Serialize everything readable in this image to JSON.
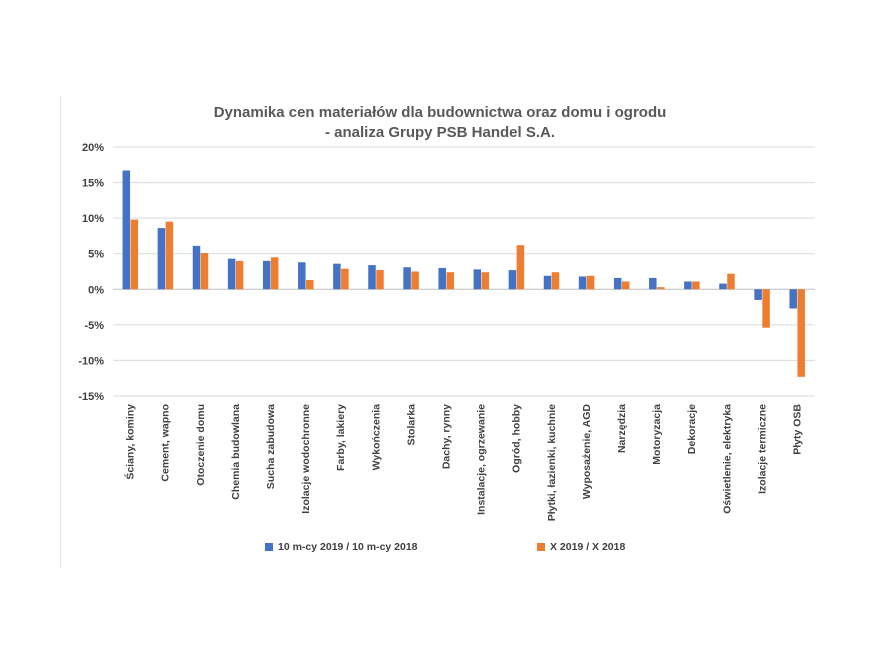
{
  "colors": {
    "series1": "#4472C4",
    "series2": "#ED7D31",
    "grid": "#d9d9d9",
    "axis_text": "#404040"
  },
  "chart_data": {
    "type": "bar",
    "title": "Dynamika cen materiałów dla budownictwa oraz domu i ogrodu",
    "subtitle": "- analiza Grupy PSB Handel S.A.",
    "xlabel": "",
    "ylabel": "",
    "ylim": [
      -0.15,
      0.2
    ],
    "yticks": [
      0.2,
      0.15,
      0.1,
      0.05,
      0.0,
      -0.05,
      -0.1,
      -0.15
    ],
    "ytick_labels": [
      "20%",
      "15%",
      "10%",
      "5%",
      "0%",
      "-5%",
      "-10%",
      "-15%"
    ],
    "grid": true,
    "legend_position": "bottom",
    "categories": [
      "Ściany, kominy",
      "Cement, wapno",
      "Otoczenie domu",
      "Chemia budowlana",
      "Sucha zabudowa",
      "Izolacje wodochronne",
      "Farby, lakiery",
      "Wykończenia",
      "Stolarka",
      "Dachy, rynny",
      "Instalacje, ogrzewanie",
      "Ogród, hobby",
      "Płytki, łazienki, kuchnie",
      "Wyposażenie, AGD",
      "Narzędzia",
      "Motoryzacja",
      "Dekoracje",
      "Oświetlenie, elektryka",
      "Izolacje termiczne",
      "Płyty OSB"
    ],
    "series": [
      {
        "name": "10 m-cy 2019 / 10 m-cy 2018",
        "values": [
          0.167,
          0.086,
          0.061,
          0.043,
          0.04,
          0.038,
          0.036,
          0.034,
          0.031,
          0.03,
          0.028,
          0.027,
          0.019,
          0.018,
          0.016,
          0.016,
          0.011,
          0.008,
          -0.015,
          -0.027
        ]
      },
      {
        "name": "X 2019 / X 2018",
        "values": [
          0.098,
          0.095,
          0.051,
          0.04,
          0.045,
          0.013,
          0.029,
          0.027,
          0.025,
          0.024,
          0.024,
          0.062,
          0.024,
          0.019,
          0.011,
          0.003,
          0.011,
          0.022,
          -0.054,
          -0.123
        ]
      }
    ]
  }
}
